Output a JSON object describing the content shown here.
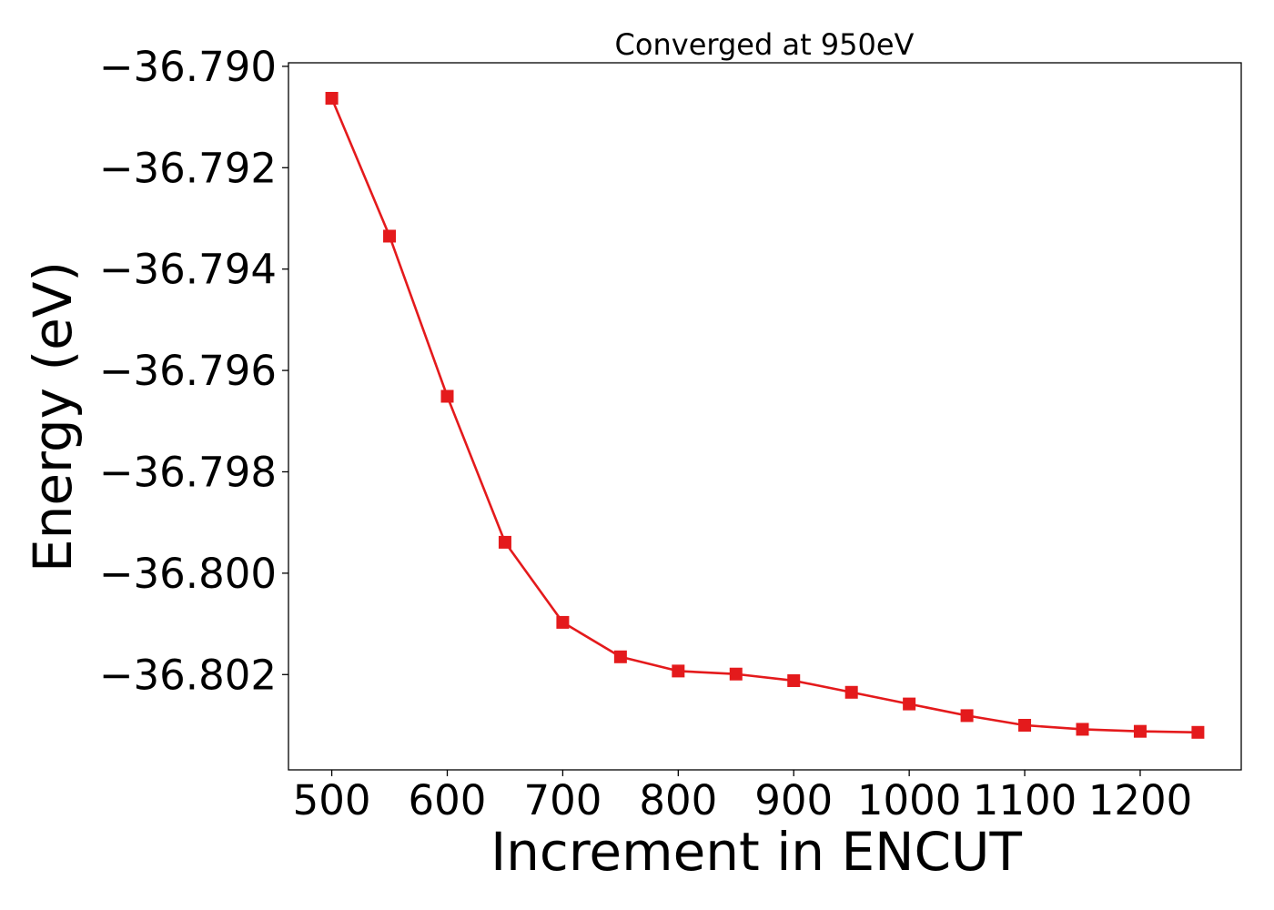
{
  "chart_data": {
    "type": "line",
    "title": "Converged at 950eV",
    "xlabel": "Increment in ENCUT",
    "ylabel": "Energy (eV)",
    "xlim": [
      462.5,
      1287.5
    ],
    "ylim": [
      -36.80388,
      -36.78993
    ],
    "x_ticks": [
      500,
      600,
      700,
      800,
      900,
      1000,
      1100,
      1200
    ],
    "x_tick_labels": [
      "500",
      "600",
      "700",
      "800",
      "900",
      "1000",
      "1100",
      "1200"
    ],
    "y_ticks": [
      -36.79,
      -36.792,
      -36.794,
      -36.796,
      -36.798,
      -36.8,
      -36.802
    ],
    "y_tick_labels": [
      "−36.790",
      "−36.792",
      "−36.794",
      "−36.796",
      "−36.798",
      "−36.800",
      "−36.802"
    ],
    "grid": false,
    "series": [
      {
        "color": "#e41a1c",
        "marker": "square",
        "x": [
          500,
          550,
          600,
          650,
          700,
          750,
          800,
          850,
          900,
          950,
          1000,
          1050,
          1100,
          1150,
          1200,
          1250
        ],
        "values": [
          -36.79063,
          -36.79335,
          -36.79651,
          -36.79939,
          -36.80097,
          -36.80165,
          -36.80193,
          -36.80199,
          -36.80212,
          -36.80235,
          -36.80258,
          -36.80281,
          -36.803,
          -36.80308,
          -36.80312,
          -36.80314
        ]
      }
    ]
  }
}
